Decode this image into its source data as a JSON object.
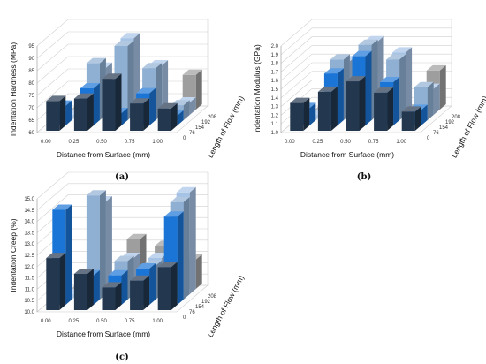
{
  "panel_labels": [
    "(a)",
    "(b)",
    "(c)"
  ],
  "colors": {
    "208": "#9E9E9E",
    "192": "#A6C3E6",
    "154": "#8FB0D3",
    "76": "#1A75D6",
    "0": "#23374F",
    "grid": "#D0D0D0",
    "axis": "#A0A0A0"
  },
  "chart_data": [
    {
      "type": "bar",
      "variant": "3d-column",
      "ylabel": "Indentation Hardness (MPa)",
      "xlabel": "Distance from Surface (mm)",
      "zlabel": "Length of Flow (mm)",
      "categories": [
        "0.00",
        "0.25",
        "0.50",
        "0.75",
        "1.00"
      ],
      "zlabels": [
        "0",
        "76",
        "154",
        "192",
        "208"
      ],
      "yticks": [
        "60",
        "65",
        "70",
        "75",
        "80",
        "85",
        "90",
        "95"
      ],
      "ylim": [
        60,
        95
      ],
      "grid": true,
      "series": [
        {
          "name": "208",
          "values": [
            60,
            60,
            60,
            60,
            74
          ]
        },
        {
          "name": "192",
          "values": [
            60,
            79,
            91,
            80,
            65
          ]
        },
        {
          "name": "154",
          "values": [
            60,
            83,
            90,
            81,
            66
          ]
        },
        {
          "name": "76",
          "values": [
            68,
            75,
            65,
            73,
            64
          ]
        },
        {
          "name": "0",
          "values": [
            72,
            73,
            81,
            71,
            69
          ]
        }
      ]
    },
    {
      "type": "bar",
      "variant": "3d-column",
      "ylabel": "Indentation Modulus (GPa)",
      "xlabel": "Distance from Surface (mm)",
      "zlabel": "Length of Flow (mm)",
      "categories": [
        "0.00",
        "0.25",
        "0.50",
        "0.75",
        "1.00"
      ],
      "zlabels": [
        "0",
        "76",
        "154",
        "192",
        "208"
      ],
      "yticks": [
        "1.0",
        "1.1",
        "1.2",
        "1.3",
        "1.4",
        "1.5",
        "1.6",
        "1.7",
        "1.8",
        "1.9",
        "2.0"
      ],
      "ylim": [
        1.0,
        2.0
      ],
      "grid": true,
      "series": [
        {
          "name": "208",
          "values": [
            1.0,
            1.0,
            1.0,
            1.0,
            1.45
          ]
        },
        {
          "name": "192",
          "values": [
            1.0,
            1.62,
            1.85,
            1.72,
            1.3
          ]
        },
        {
          "name": "154",
          "values": [
            1.0,
            1.7,
            1.87,
            1.7,
            1.38
          ]
        },
        {
          "name": "76",
          "values": [
            1.2,
            1.6,
            1.8,
            1.5,
            1.18
          ]
        },
        {
          "name": "0",
          "values": [
            1.32,
            1.45,
            1.57,
            1.44,
            1.22
          ]
        }
      ]
    },
    {
      "type": "bar",
      "variant": "3d-column",
      "ylabel": "Indentation Creep (%)",
      "xlabel": "Distance from Surface (mm)",
      "zlabel": "Length of Flow (mm)",
      "categories": [
        "0.00",
        "0.25",
        "0.50",
        "0.75",
        "1.00"
      ],
      "zlabels": [
        "0",
        "76",
        "154",
        "192",
        "208"
      ],
      "yticks": [
        "10.0",
        "10.5",
        "11.0",
        "11.5",
        "12.0",
        "12.5",
        "13.0",
        "13.5",
        "14.0",
        "14.5",
        "15.0"
      ],
      "ylim": [
        10,
        15
      ],
      "grid": true,
      "series": [
        {
          "name": "208",
          "values": [
            10,
            10,
            12.2,
            11.9,
            11.3
          ]
        },
        {
          "name": "192",
          "values": [
            10,
            14.1,
            11.6,
            11.6,
            14.5
          ]
        },
        {
          "name": "154",
          "values": [
            10,
            14.6,
            11.7,
            11.5,
            14.3
          ]
        },
        {
          "name": "76",
          "values": [
            14.2,
            11.3,
            11.3,
            11.6,
            13.9
          ]
        },
        {
          "name": "0",
          "values": [
            12.3,
            11.6,
            11.0,
            11.3,
            11.9
          ]
        }
      ]
    }
  ]
}
